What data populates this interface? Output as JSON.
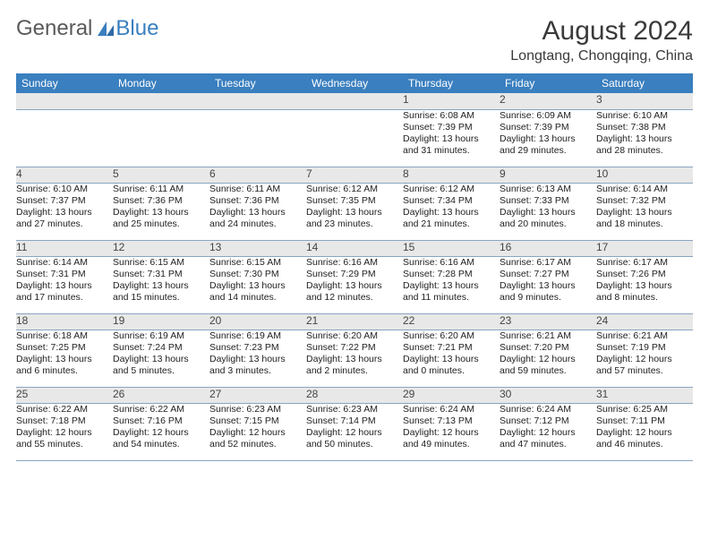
{
  "brand": {
    "part1": "General",
    "part2": "Blue"
  },
  "title": "August 2024",
  "location": "Longtang, Chongqing, China",
  "colors": {
    "header_bg": "#3a7fbf",
    "header_text": "#ffffff",
    "daynum_bg": "#e8e8e8",
    "row_border": "#8aa5c2",
    "page_bg": "#ffffff",
    "text": "#222222"
  },
  "typography": {
    "title_fontsize": 30,
    "location_fontsize": 16,
    "header_fontsize": 12,
    "cell_fontsize": 10.5
  },
  "weekdays": [
    "Sunday",
    "Monday",
    "Tuesday",
    "Wednesday",
    "Thursday",
    "Friday",
    "Saturday"
  ],
  "weeks": [
    {
      "nums": [
        "",
        "",
        "",
        "",
        "1",
        "2",
        "3"
      ],
      "cells": [
        [],
        [],
        [],
        [],
        [
          "Sunrise: 6:08 AM",
          "Sunset: 7:39 PM",
          "Daylight: 13 hours",
          "and 31 minutes."
        ],
        [
          "Sunrise: 6:09 AM",
          "Sunset: 7:39 PM",
          "Daylight: 13 hours",
          "and 29 minutes."
        ],
        [
          "Sunrise: 6:10 AM",
          "Sunset: 7:38 PM",
          "Daylight: 13 hours",
          "and 28 minutes."
        ]
      ]
    },
    {
      "nums": [
        "4",
        "5",
        "6",
        "7",
        "8",
        "9",
        "10"
      ],
      "cells": [
        [
          "Sunrise: 6:10 AM",
          "Sunset: 7:37 PM",
          "Daylight: 13 hours",
          "and 27 minutes."
        ],
        [
          "Sunrise: 6:11 AM",
          "Sunset: 7:36 PM",
          "Daylight: 13 hours",
          "and 25 minutes."
        ],
        [
          "Sunrise: 6:11 AM",
          "Sunset: 7:36 PM",
          "Daylight: 13 hours",
          "and 24 minutes."
        ],
        [
          "Sunrise: 6:12 AM",
          "Sunset: 7:35 PM",
          "Daylight: 13 hours",
          "and 23 minutes."
        ],
        [
          "Sunrise: 6:12 AM",
          "Sunset: 7:34 PM",
          "Daylight: 13 hours",
          "and 21 minutes."
        ],
        [
          "Sunrise: 6:13 AM",
          "Sunset: 7:33 PM",
          "Daylight: 13 hours",
          "and 20 minutes."
        ],
        [
          "Sunrise: 6:14 AM",
          "Sunset: 7:32 PM",
          "Daylight: 13 hours",
          "and 18 minutes."
        ]
      ]
    },
    {
      "nums": [
        "11",
        "12",
        "13",
        "14",
        "15",
        "16",
        "17"
      ],
      "cells": [
        [
          "Sunrise: 6:14 AM",
          "Sunset: 7:31 PM",
          "Daylight: 13 hours",
          "and 17 minutes."
        ],
        [
          "Sunrise: 6:15 AM",
          "Sunset: 7:31 PM",
          "Daylight: 13 hours",
          "and 15 minutes."
        ],
        [
          "Sunrise: 6:15 AM",
          "Sunset: 7:30 PM",
          "Daylight: 13 hours",
          "and 14 minutes."
        ],
        [
          "Sunrise: 6:16 AM",
          "Sunset: 7:29 PM",
          "Daylight: 13 hours",
          "and 12 minutes."
        ],
        [
          "Sunrise: 6:16 AM",
          "Sunset: 7:28 PM",
          "Daylight: 13 hours",
          "and 11 minutes."
        ],
        [
          "Sunrise: 6:17 AM",
          "Sunset: 7:27 PM",
          "Daylight: 13 hours",
          "and 9 minutes."
        ],
        [
          "Sunrise: 6:17 AM",
          "Sunset: 7:26 PM",
          "Daylight: 13 hours",
          "and 8 minutes."
        ]
      ]
    },
    {
      "nums": [
        "18",
        "19",
        "20",
        "21",
        "22",
        "23",
        "24"
      ],
      "cells": [
        [
          "Sunrise: 6:18 AM",
          "Sunset: 7:25 PM",
          "Daylight: 13 hours",
          "and 6 minutes."
        ],
        [
          "Sunrise: 6:19 AM",
          "Sunset: 7:24 PM",
          "Daylight: 13 hours",
          "and 5 minutes."
        ],
        [
          "Sunrise: 6:19 AM",
          "Sunset: 7:23 PM",
          "Daylight: 13 hours",
          "and 3 minutes."
        ],
        [
          "Sunrise: 6:20 AM",
          "Sunset: 7:22 PM",
          "Daylight: 13 hours",
          "and 2 minutes."
        ],
        [
          "Sunrise: 6:20 AM",
          "Sunset: 7:21 PM",
          "Daylight: 13 hours",
          "and 0 minutes."
        ],
        [
          "Sunrise: 6:21 AM",
          "Sunset: 7:20 PM",
          "Daylight: 12 hours",
          "and 59 minutes."
        ],
        [
          "Sunrise: 6:21 AM",
          "Sunset: 7:19 PM",
          "Daylight: 12 hours",
          "and 57 minutes."
        ]
      ]
    },
    {
      "nums": [
        "25",
        "26",
        "27",
        "28",
        "29",
        "30",
        "31"
      ],
      "cells": [
        [
          "Sunrise: 6:22 AM",
          "Sunset: 7:18 PM",
          "Daylight: 12 hours",
          "and 55 minutes."
        ],
        [
          "Sunrise: 6:22 AM",
          "Sunset: 7:16 PM",
          "Daylight: 12 hours",
          "and 54 minutes."
        ],
        [
          "Sunrise: 6:23 AM",
          "Sunset: 7:15 PM",
          "Daylight: 12 hours",
          "and 52 minutes."
        ],
        [
          "Sunrise: 6:23 AM",
          "Sunset: 7:14 PM",
          "Daylight: 12 hours",
          "and 50 minutes."
        ],
        [
          "Sunrise: 6:24 AM",
          "Sunset: 7:13 PM",
          "Daylight: 12 hours",
          "and 49 minutes."
        ],
        [
          "Sunrise: 6:24 AM",
          "Sunset: 7:12 PM",
          "Daylight: 12 hours",
          "and 47 minutes."
        ],
        [
          "Sunrise: 6:25 AM",
          "Sunset: 7:11 PM",
          "Daylight: 12 hours",
          "and 46 minutes."
        ]
      ]
    }
  ]
}
